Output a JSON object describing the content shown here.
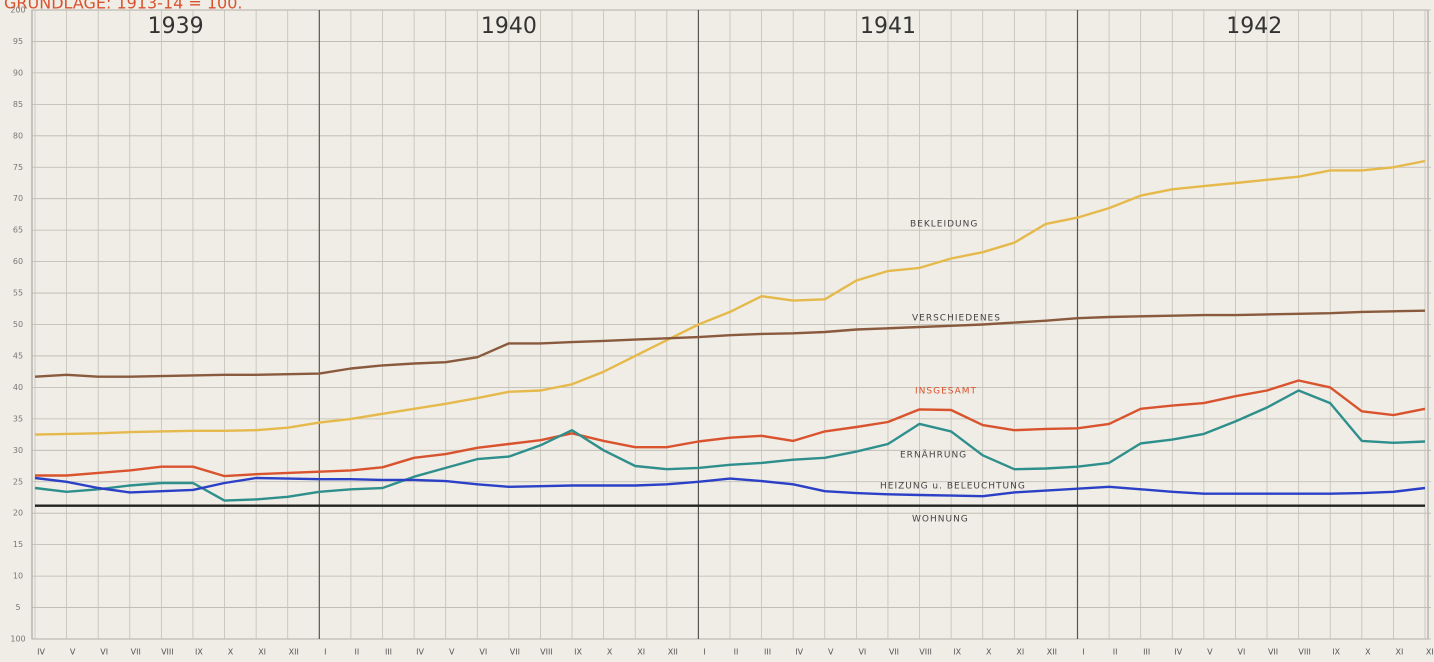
{
  "chart_data": {
    "type": "line",
    "subtitle": "GRUNDLAGE: 1913-14 = 100.",
    "year_labels": [
      "1939",
      "1940",
      "1941",
      "1942"
    ],
    "categories": [
      "IV",
      "V",
      "VI",
      "VII",
      "VIII",
      "IX",
      "X",
      "XI",
      "XII",
      "I",
      "II",
      "III",
      "IV",
      "V",
      "VI",
      "VII",
      "VIII",
      "IX",
      "X",
      "XI",
      "XII",
      "I",
      "II",
      "III",
      "IV",
      "V",
      "VI",
      "VII",
      "VIII",
      "IX",
      "X",
      "XI",
      "XII",
      "I",
      "II",
      "III",
      "IV",
      "V",
      "VI",
      "VII",
      "VIII",
      "IX",
      "X",
      "XI",
      "XII"
    ],
    "ylim": [
      100,
      200
    ],
    "yticks": [
      100,
      {
        "value": 105,
        "label": "5"
      },
      {
        "value": 110,
        "label": "10"
      },
      {
        "value": 115,
        "label": "15"
      },
      {
        "value": 120,
        "label": "20"
      },
      {
        "value": 125,
        "label": "25"
      },
      {
        "value": 130,
        "label": "30"
      },
      {
        "value": 135,
        "label": "35"
      },
      {
        "value": 140,
        "label": "40"
      },
      {
        "value": 145,
        "label": "45"
      },
      {
        "value": 150,
        "label": "50"
      },
      {
        "value": 155,
        "label": "55"
      },
      {
        "value": 160,
        "label": "60"
      },
      {
        "value": 165,
        "label": "65"
      },
      {
        "value": 170,
        "label": "70"
      },
      {
        "value": 175,
        "label": "75"
      },
      {
        "value": 180,
        "label": "80"
      },
      {
        "value": 185,
        "label": "85"
      },
      {
        "value": 190,
        "label": "90"
      },
      {
        "value": 195,
        "label": "95"
      },
      200
    ],
    "grid": true,
    "series": [
      {
        "name": "BEKLEIDUNG",
        "color": "#e6b94c",
        "values": [
          132.5,
          132.6,
          132.7,
          132.9,
          133.0,
          133.1,
          133.1,
          133.2,
          133.6,
          134.4,
          135.0,
          135.8,
          136.6,
          137.4,
          138.3,
          139.3,
          139.5,
          140.5,
          142.5,
          145.0,
          147.5,
          150.0,
          152.0,
          154.5,
          153.8,
          154.0,
          157.0,
          158.5,
          159.0,
          160.5,
          161.5,
          163.0,
          166.0,
          167.0,
          168.5,
          170.5,
          171.5,
          172.0,
          172.5,
          173.0,
          173.5,
          174.5,
          174.5,
          175.0,
          176.0
        ]
      },
      {
        "name": "VERSCHIEDENES",
        "color": "#8a5a3e",
        "values": [
          141.7,
          142.0,
          141.7,
          141.7,
          141.8,
          141.9,
          142.0,
          142.0,
          142.1,
          142.2,
          143.0,
          143.5,
          143.8,
          144.0,
          144.8,
          147.0,
          147.0,
          147.2,
          147.4,
          147.6,
          147.8,
          148.0,
          148.3,
          148.5,
          148.6,
          148.8,
          149.2,
          149.4,
          149.6,
          149.8,
          150.0,
          150.3,
          150.6,
          151.0,
          151.2,
          151.3,
          151.4,
          151.5,
          151.5,
          151.6,
          151.7,
          151.8,
          152.0,
          152.1,
          152.2
        ]
      },
      {
        "name": "INSGESAMT",
        "color": "#d9532e",
        "values": [
          126.0,
          126.0,
          126.4,
          126.8,
          127.4,
          127.4,
          125.9,
          126.2,
          126.4,
          126.6,
          126.8,
          127.3,
          128.8,
          129.4,
          130.4,
          131.0,
          131.6,
          132.7,
          131.5,
          130.5,
          130.5,
          131.4,
          132.0,
          132.3,
          131.5,
          133.0,
          133.7,
          134.5,
          136.5,
          136.4,
          134.0,
          133.2,
          133.4,
          133.5,
          134.2,
          136.6,
          137.1,
          137.5,
          138.6,
          139.5,
          141.1,
          140.0,
          136.2,
          135.6,
          136.6
        ]
      },
      {
        "name": "ERNÄHRUNG",
        "color": "#2f8f8c",
        "values": [
          124.0,
          123.4,
          123.8,
          124.4,
          124.8,
          124.8,
          122.0,
          122.2,
          122.6,
          123.4,
          123.8,
          124.0,
          125.8,
          127.2,
          128.6,
          129.0,
          130.8,
          133.2,
          130.0,
          127.5,
          127.0,
          127.2,
          127.7,
          128.0,
          128.5,
          128.8,
          129.8,
          131.0,
          134.2,
          133.0,
          129.2,
          127.0,
          127.1,
          127.4,
          128.0,
          131.1,
          131.7,
          132.6,
          134.6,
          136.8,
          139.5,
          137.5,
          131.5,
          131.2,
          131.4
        ]
      },
      {
        "name": "HEIZUNG u. BELEUCHTUNG",
        "color": "#2b40c6",
        "values": [
          125.6,
          125.0,
          124.0,
          123.3,
          123.5,
          123.7,
          124.8,
          125.6,
          125.5,
          125.4,
          125.4,
          125.3,
          125.3,
          125.1,
          124.6,
          124.2,
          124.3,
          124.4,
          124.4,
          124.4,
          124.6,
          125.0,
          125.5,
          125.1,
          124.6,
          123.5,
          123.2,
          123.0,
          122.9,
          122.8,
          122.7,
          123.3,
          123.6,
          123.9,
          124.2,
          123.8,
          123.4,
          123.1,
          123.1,
          123.1,
          123.1,
          123.1,
          123.2,
          123.4,
          124.0
        ]
      },
      {
        "name": "WOHNUNG",
        "color": "#222222",
        "values": [
          121.2,
          121.2,
          121.2,
          121.2,
          121.2,
          121.2,
          121.2,
          121.2,
          121.2,
          121.2,
          121.2,
          121.2,
          121.2,
          121.2,
          121.2,
          121.2,
          121.2,
          121.2,
          121.2,
          121.2,
          121.2,
          121.2,
          121.2,
          121.2,
          121.2,
          121.2,
          121.2,
          121.2,
          121.2,
          121.2,
          121.2,
          121.2,
          121.2,
          121.2,
          121.2,
          121.2,
          121.2,
          121.2,
          121.2,
          121.2,
          121.2,
          121.2,
          121.2,
          121.2,
          121.2
        ]
      }
    ]
  }
}
